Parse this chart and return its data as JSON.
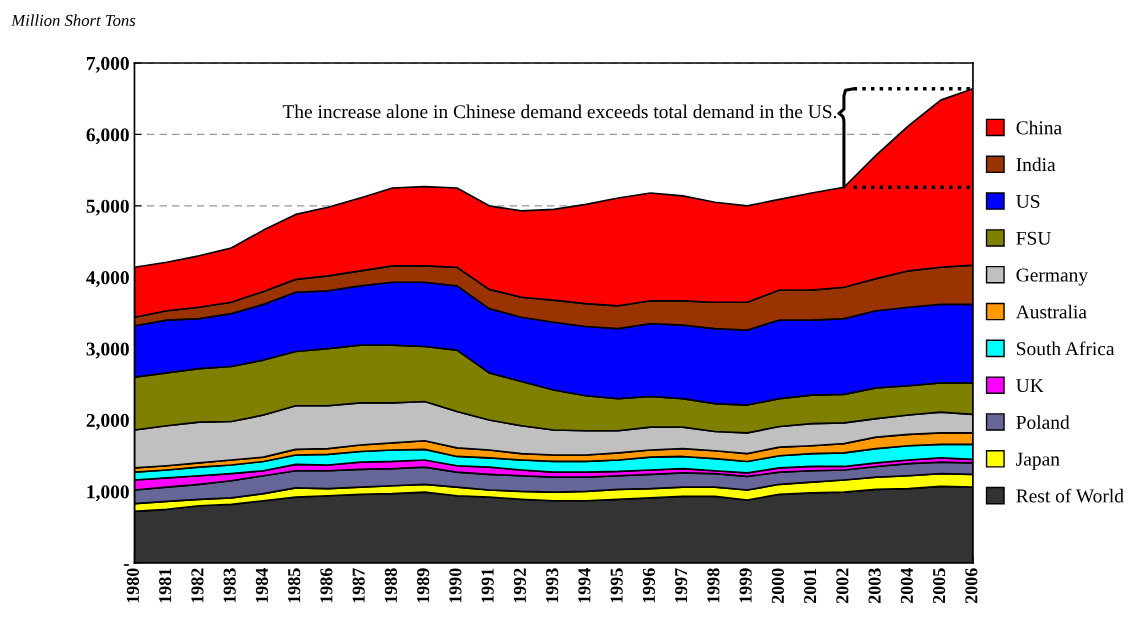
{
  "chart_data": {
    "type": "area",
    "stacked": true,
    "ylabel": "Million Short Tons",
    "annotations": [
      {
        "text": "The increase alone in Chinese demand exceeds total demand in the US.",
        "x": 2002,
        "y": 5260
      }
    ],
    "x": [
      1980,
      1981,
      1982,
      1983,
      1984,
      1985,
      1986,
      1987,
      1988,
      1989,
      1990,
      1991,
      1992,
      1993,
      1994,
      1995,
      1996,
      1997,
      1998,
      1999,
      2000,
      2001,
      2002,
      2003,
      2004,
      2005,
      2006
    ],
    "xlim": [
      1980,
      2006
    ],
    "xticks": [
      1980,
      1981,
      1982,
      1983,
      1984,
      1985,
      1986,
      1987,
      1988,
      1989,
      1990,
      1991,
      1992,
      1993,
      1994,
      1995,
      1996,
      1997,
      1998,
      1999,
      2000,
      2001,
      2002,
      2003,
      2004,
      2005,
      2006
    ],
    "ylim": [
      0,
      7000
    ],
    "yticks": [
      {
        "value": 0,
        "label": "-"
      },
      {
        "value": 1000,
        "label": "1,000"
      },
      {
        "value": 2000,
        "label": "2,000"
      },
      {
        "value": 3000,
        "label": "3,000"
      },
      {
        "value": 4000,
        "label": "4,000"
      },
      {
        "value": 5000,
        "label": "5,000"
      },
      {
        "value": 6000,
        "label": "6,000"
      },
      {
        "value": 7000,
        "label": "7,000"
      }
    ],
    "grid": "y",
    "legend": "right",
    "series": [
      {
        "name": "Rest of World",
        "color": "#333333",
        "values": [
          720,
          750,
          800,
          820,
          870,
          920,
          940,
          960,
          970,
          990,
          940,
          920,
          890,
          870,
          870,
          890,
          910,
          930,
          930,
          880,
          960,
          980,
          990,
          1030,
          1040,
          1070,
          1060
        ]
      },
      {
        "name": "Japan",
        "color": "#ffff00",
        "values": [
          110,
          110,
          90,
          90,
          100,
          130,
          100,
          100,
          110,
          110,
          120,
          100,
          110,
          120,
          130,
          140,
          130,
          130,
          130,
          140,
          140,
          150,
          170,
          170,
          180,
          180,
          180
        ]
      },
      {
        "name": "Poland",
        "color": "#666699",
        "values": [
          190,
          200,
          210,
          240,
          250,
          240,
          250,
          250,
          240,
          240,
          210,
          220,
          220,
          210,
          200,
          190,
          200,
          200,
          190,
          190,
          170,
          160,
          140,
          150,
          170,
          160,
          160
        ]
      },
      {
        "name": "UK",
        "color": "#ff00ff",
        "values": [
          140,
          130,
          120,
          100,
          70,
          90,
          80,
          100,
          100,
          100,
          90,
          100,
          80,
          70,
          70,
          60,
          60,
          60,
          40,
          50,
          60,
          60,
          50,
          50,
          50,
          60,
          50
        ]
      },
      {
        "name": "South Africa",
        "color": "#00ffff",
        "values": [
          110,
          110,
          120,
          120,
          130,
          130,
          150,
          150,
          160,
          150,
          130,
          130,
          140,
          150,
          150,
          160,
          180,
          170,
          170,
          160,
          170,
          180,
          190,
          200,
          200,
          190,
          210
        ]
      },
      {
        "name": "Australia",
        "color": "#ff9900",
        "values": [
          60,
          60,
          60,
          70,
          60,
          80,
          80,
          90,
          100,
          120,
          120,
          110,
          90,
          90,
          90,
          100,
          100,
          110,
          110,
          110,
          120,
          110,
          130,
          160,
          160,
          160,
          160
        ]
      },
      {
        "name": "Germany",
        "color": "#c0c0c0",
        "values": [
          530,
          560,
          570,
          540,
          590,
          610,
          600,
          590,
          560,
          550,
          510,
          420,
          390,
          350,
          340,
          310,
          320,
          300,
          270,
          290,
          290,
          310,
          290,
          260,
          270,
          290,
          260
        ]
      },
      {
        "name": "FSU",
        "color": "#808000",
        "values": [
          740,
          740,
          750,
          770,
          770,
          760,
          800,
          810,
          810,
          770,
          860,
          660,
          620,
          560,
          490,
          450,
          430,
          400,
          390,
          390,
          390,
          400,
          400,
          430,
          410,
          410,
          440
        ]
      },
      {
        "name": "US",
        "color": "#0000ff",
        "values": [
          720,
          740,
          700,
          740,
          780,
          830,
          810,
          830,
          880,
          900,
          900,
          900,
          900,
          950,
          970,
          980,
          1020,
          1030,
          1050,
          1050,
          1100,
          1050,
          1060,
          1080,
          1100,
          1100,
          1100
        ]
      },
      {
        "name": "India",
        "color": "#993300",
        "values": [
          120,
          130,
          160,
          160,
          180,
          180,
          210,
          210,
          230,
          230,
          260,
          270,
          280,
          310,
          320,
          320,
          320,
          340,
          370,
          390,
          420,
          420,
          440,
          450,
          510,
          520,
          550
        ]
      },
      {
        "name": "China",
        "color": "#ff0000",
        "values": [
          700,
          680,
          720,
          760,
          860,
          910,
          960,
          1020,
          1090,
          1110,
          1110,
          1170,
          1210,
          1270,
          1390,
          1510,
          1510,
          1470,
          1400,
          1350,
          1270,
          1360,
          1400,
          1730,
          2030,
          2340,
          2470
        ]
      }
    ]
  }
}
